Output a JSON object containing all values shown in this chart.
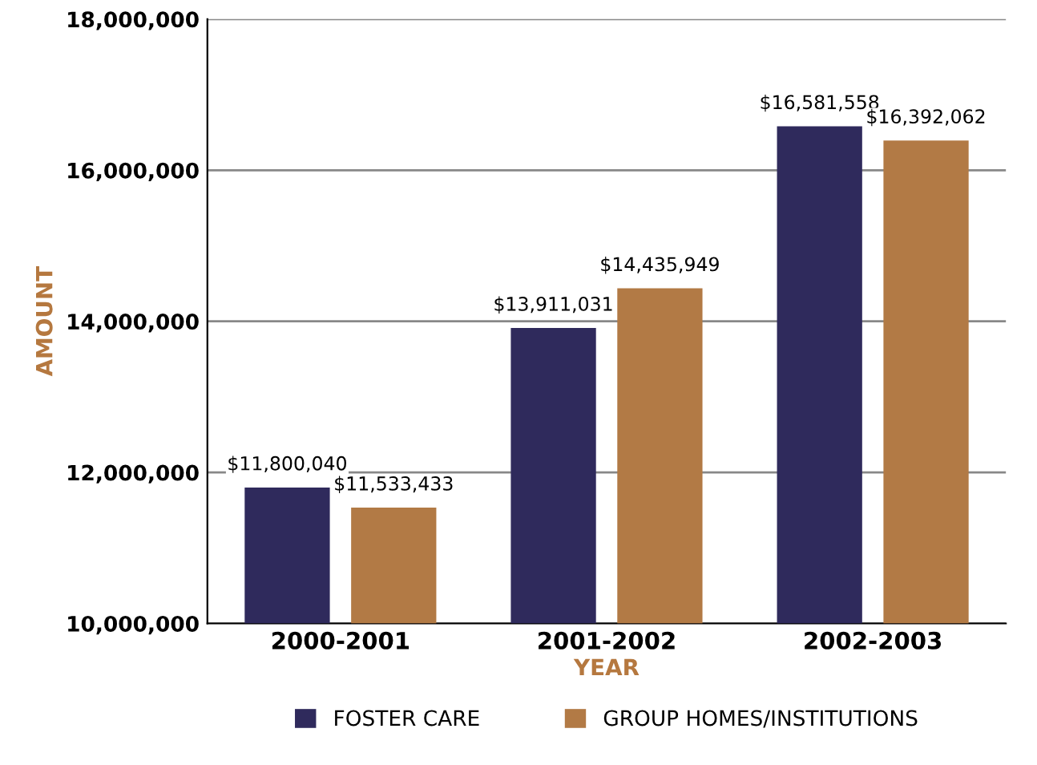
{
  "chart_data": {
    "type": "bar",
    "xlabel": "YEAR",
    "ylabel": "AMOUNT",
    "categories": [
      "2000-2001",
      "2001-2002",
      "2002-2003"
    ],
    "series": [
      {
        "name": "FOSTER CARE",
        "color": "#2f2a5c",
        "values": [
          11800040,
          13911031,
          16581558
        ],
        "value_labels": [
          "$11,800,040",
          "$13,911,031",
          "$16,581,558"
        ]
      },
      {
        "name": "GROUP HOMES/INSTITUTIONS",
        "color": "#b27a45",
        "values": [
          11533433,
          14435949,
          16392062
        ],
        "value_labels": [
          "$11,533,433",
          "$14,435,949",
          "$16,392,062"
        ]
      }
    ],
    "ylim": [
      10000000,
      18000000
    ],
    "yticks": [
      {
        "value": 10000000,
        "label": "10,000,000"
      },
      {
        "value": 12000000,
        "label": "12,000,000"
      },
      {
        "value": 14000000,
        "label": "14,000,000"
      },
      {
        "value": 16000000,
        "label": "16,000,000"
      },
      {
        "value": 18000000,
        "label": "18,000,000"
      }
    ],
    "grid": "y",
    "legend": "bottom"
  }
}
